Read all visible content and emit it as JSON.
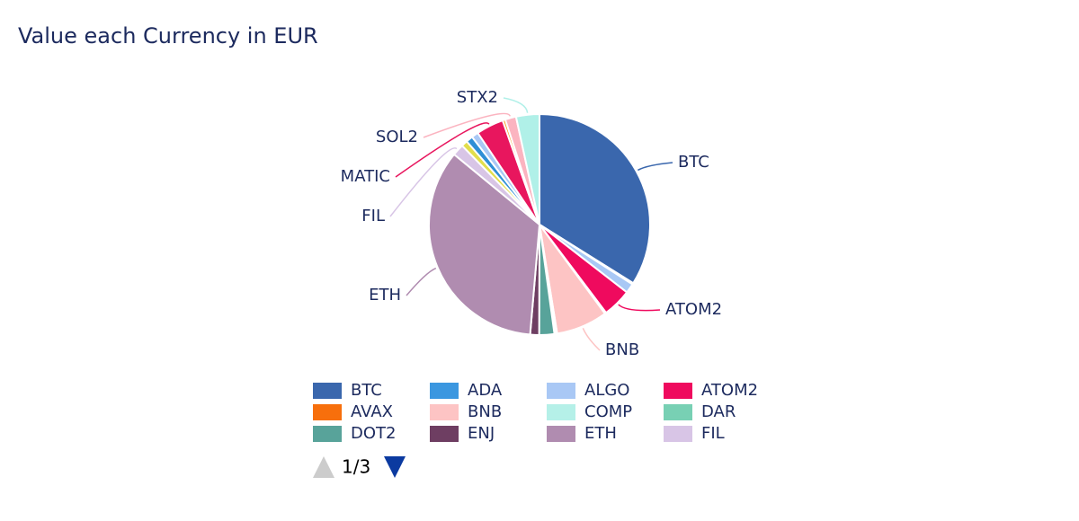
{
  "chart_data": {
    "type": "pie",
    "title": "Value each Currency in EUR",
    "categories": [
      "BTC",
      "ADA",
      "ALGO",
      "ATOM2",
      "AVAX",
      "BNB",
      "COMP",
      "DAR",
      "DOT2",
      "ENJ",
      "ETH",
      "FIL",
      null,
      null,
      null,
      "MATIC",
      null,
      "SOL2",
      "STX2"
    ],
    "values": [
      33.8,
      0.2,
      1.4,
      4.2,
      0.2,
      7.5,
      0.2,
      0.2,
      2.2,
      1.3,
      34.5,
      1.7,
      0.9,
      1.0,
      1.0,
      4.0,
      0.4,
      1.6,
      3.4
    ],
    "colors": [
      "#3a67ad",
      "#3b97e0",
      "#a9c8f5",
      "#ef0a5e",
      "#f76f0c",
      "#fdc4c4",
      "#b5f0e8",
      "#78d0b4",
      "#58a39a",
      "#6e3e62",
      "#b08cb0",
      "#d8c5e6",
      "#e2de4c",
      "#2f8fd6",
      "#a9c8f5",
      "#e8165e",
      "#f7a020",
      "#fbb4c0",
      "#b0f0e8"
    ],
    "legend_page": "1/3"
  }
}
